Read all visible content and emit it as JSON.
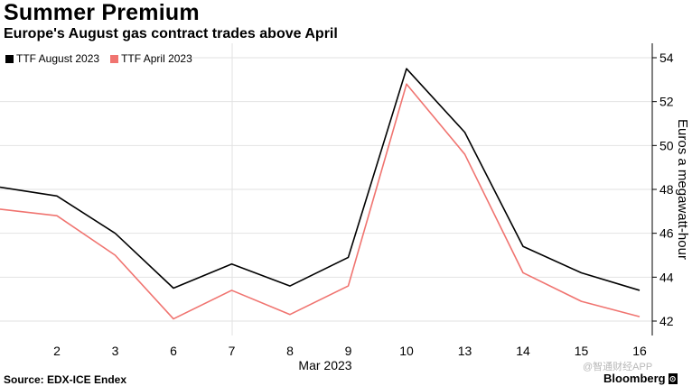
{
  "title": "Summer Premium",
  "subtitle": "Europe's August gas contract trades above April",
  "source": "Source: EDX-ICE Endex",
  "brand": "Bloomberg",
  "brand_mark": "⊙",
  "watermark": "@智通财经APP",
  "chart_data": {
    "type": "line",
    "x": [
      "2",
      "3",
      "6",
      "7",
      "8",
      "9",
      "10",
      "13",
      "14",
      "15",
      "16"
    ],
    "xlabel": "Mar 2023",
    "ylabel": "Euros a megawatt-hour",
    "ylim": [
      41.5,
      54.5
    ],
    "yticks": [
      42,
      44,
      46,
      48,
      50,
      52,
      54
    ],
    "grid": true,
    "legend_position": "top-left",
    "series": [
      {
        "name": "TTF August 2023",
        "color": "#000000",
        "values": [
          47.7,
          46.0,
          43.5,
          44.6,
          43.6,
          44.9,
          53.5,
          50.6,
          45.4,
          44.2,
          43.4
        ]
      },
      {
        "name": "TTF April 2023",
        "color": "#f07470",
        "values": [
          46.8,
          45.0,
          42.1,
          43.4,
          42.3,
          43.6,
          52.8,
          49.6,
          44.2,
          42.9,
          42.2
        ]
      }
    ],
    "left_edge_values": [
      48.1,
      47.1
    ]
  }
}
